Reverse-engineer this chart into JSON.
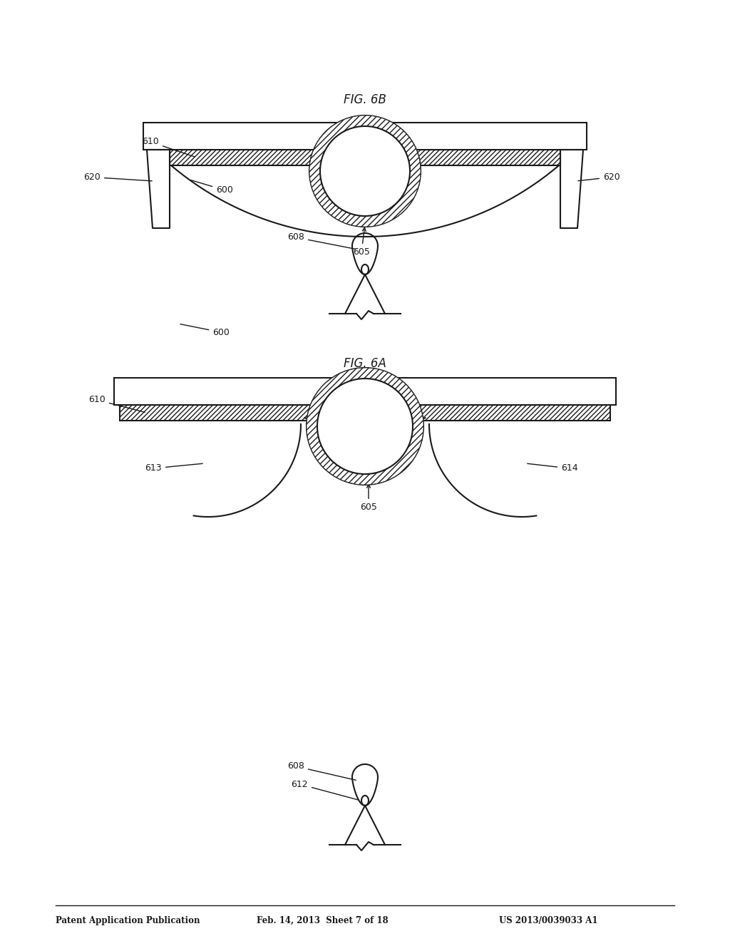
{
  "bg_color": "#ffffff",
  "line_color": "#1a1a1a",
  "header_left": "Patent Application Publication",
  "header_mid": "Feb. 14, 2013  Sheet 7 of 18",
  "header_right": "US 2013/0039033 A1",
  "fig6a_label": "FIG. 6A",
  "fig6b_label": "FIG. 6B",
  "fig_width": 10.24,
  "fig_height": 13.2,
  "dpi": 100
}
